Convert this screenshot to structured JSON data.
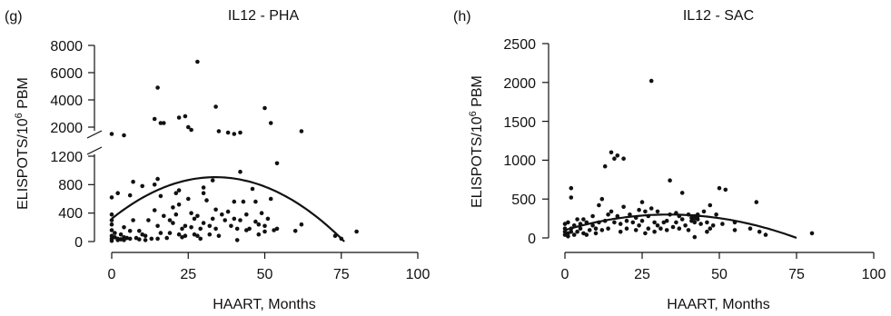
{
  "chart_data": [
    {
      "type": "scatter",
      "panel_label": "(g)",
      "title": "IL12 - PHA",
      "xlabel": "HAART, Months",
      "ylabel_main": "ELISPOTS/10",
      "ylabel_sup": "6",
      "ylabel_tail": " PBM",
      "xlim": [
        0,
        100
      ],
      "x_ticks": [
        "0",
        "25",
        "50",
        "75",
        "100"
      ],
      "y_break": true,
      "y_lower_range": [
        0,
        1200
      ],
      "y_upper_range": [
        1000,
        8000
      ],
      "y_ticks_lower": [
        "0",
        "400",
        "800",
        "1200"
      ],
      "y_ticks_upper": [
        "2000",
        "4000",
        "6000",
        "8000"
      ],
      "grid": false,
      "fit": {
        "type": "quadratic",
        "x_range": [
          0,
          76
        ],
        "points": [
          [
            0,
            320
          ],
          [
            34,
            905
          ],
          [
            76,
            0
          ]
        ]
      },
      "points": [
        [
          0,
          1500
        ],
        [
          4,
          1400
        ],
        [
          14,
          2600
        ],
        [
          15,
          4900
        ],
        [
          16,
          2300
        ],
        [
          17,
          2300
        ],
        [
          22,
          2700
        ],
        [
          24,
          2800
        ],
        [
          25,
          2000
        ],
        [
          26,
          1800
        ],
        [
          28,
          6800
        ],
        [
          34,
          3500
        ],
        [
          35,
          1700
        ],
        [
          38,
          1600
        ],
        [
          40,
          1500
        ],
        [
          42,
          1600
        ],
        [
          50,
          3400
        ],
        [
          52,
          2300
        ],
        [
          54,
          1100
        ],
        [
          62,
          1700
        ],
        [
          0,
          620
        ],
        [
          0,
          380
        ],
        [
          0,
          300
        ],
        [
          0,
          240
        ],
        [
          0,
          160
        ],
        [
          0,
          80
        ],
        [
          0,
          40
        ],
        [
          0,
          10
        ],
        [
          1,
          120
        ],
        [
          1,
          60
        ],
        [
          2,
          680
        ],
        [
          2,
          40
        ],
        [
          2,
          20
        ],
        [
          3,
          100
        ],
        [
          3,
          30
        ],
        [
          4,
          200
        ],
        [
          4,
          60
        ],
        [
          4,
          20
        ],
        [
          5,
          50
        ],
        [
          6,
          650
        ],
        [
          6,
          150
        ],
        [
          6,
          40
        ],
        [
          7,
          840
        ],
        [
          7,
          300
        ],
        [
          8,
          50
        ],
        [
          9,
          150
        ],
        [
          9,
          30
        ],
        [
          10,
          780
        ],
        [
          10,
          100
        ],
        [
          11,
          80
        ],
        [
          11,
          20
        ],
        [
          12,
          300
        ],
        [
          13,
          40
        ],
        [
          14,
          800
        ],
        [
          14,
          440
        ],
        [
          15,
          880
        ],
        [
          15,
          220
        ],
        [
          15,
          40
        ],
        [
          16,
          640
        ],
        [
          16,
          120
        ],
        [
          17,
          360
        ],
        [
          18,
          50
        ],
        [
          19,
          300
        ],
        [
          19,
          120
        ],
        [
          20,
          260
        ],
        [
          20,
          480
        ],
        [
          21,
          680
        ],
        [
          21,
          380
        ],
        [
          22,
          720
        ],
        [
          22,
          520
        ],
        [
          22,
          100
        ],
        [
          23,
          180
        ],
        [
          23,
          60
        ],
        [
          24,
          220
        ],
        [
          24,
          80
        ],
        [
          25,
          600
        ],
        [
          26,
          400
        ],
        [
          26,
          200
        ],
        [
          27,
          320
        ],
        [
          27,
          100
        ],
        [
          28,
          360
        ],
        [
          28,
          80
        ],
        [
          29,
          180
        ],
        [
          29,
          40
        ],
        [
          30,
          680
        ],
        [
          30,
          760
        ],
        [
          30,
          260
        ],
        [
          31,
          580
        ],
        [
          32,
          220
        ],
        [
          32,
          100
        ],
        [
          33,
          860
        ],
        [
          33,
          320
        ],
        [
          34,
          450
        ],
        [
          34,
          180
        ],
        [
          35,
          80
        ],
        [
          36,
          380
        ],
        [
          37,
          300
        ],
        [
          38,
          420
        ],
        [
          39,
          220
        ],
        [
          40,
          560
        ],
        [
          40,
          320
        ],
        [
          41,
          180
        ],
        [
          41,
          20
        ],
        [
          42,
          980
        ],
        [
          42,
          300
        ],
        [
          43,
          560
        ],
        [
          44,
          380
        ],
        [
          44,
          160
        ],
        [
          45,
          180
        ],
        [
          46,
          740
        ],
        [
          47,
          560
        ],
        [
          47,
          280
        ],
        [
          48,
          240
        ],
        [
          48,
          100
        ],
        [
          49,
          400
        ],
        [
          50,
          220
        ],
        [
          50,
          140
        ],
        [
          51,
          320
        ],
        [
          52,
          600
        ],
        [
          53,
          160
        ],
        [
          54,
          180
        ],
        [
          60,
          150
        ],
        [
          62,
          240
        ],
        [
          73,
          80
        ],
        [
          75,
          40
        ],
        [
          80,
          140
        ]
      ]
    },
    {
      "type": "scatter",
      "panel_label": "(h)",
      "title": "IL12 - SAC",
      "xlabel": "HAART, Months",
      "ylabel_main": "ELISPOTS/10",
      "ylabel_sup": "6",
      "ylabel_tail": " PBM",
      "xlim": [
        0,
        100
      ],
      "ylim": [
        0,
        2500
      ],
      "x_ticks": [
        "0",
        "25",
        "50",
        "75",
        "100"
      ],
      "y_ticks": [
        "0",
        "500",
        "1000",
        "1500",
        "2000",
        "2500"
      ],
      "grid": false,
      "fit": {
        "type": "quadratic",
        "x_range": [
          0,
          75
        ],
        "points": [
          [
            0,
            100
          ],
          [
            32,
            300
          ],
          [
            75,
            0
          ]
        ]
      },
      "points": [
        [
          0,
          180
        ],
        [
          0,
          120
        ],
        [
          0,
          80
        ],
        [
          0,
          40
        ],
        [
          1,
          200
        ],
        [
          1,
          60
        ],
        [
          1,
          20
        ],
        [
          2,
          640
        ],
        [
          2,
          520
        ],
        [
          2,
          120
        ],
        [
          2,
          80
        ],
        [
          3,
          160
        ],
        [
          3,
          40
        ],
        [
          4,
          240
        ],
        [
          4,
          80
        ],
        [
          5,
          180
        ],
        [
          5,
          120
        ],
        [
          6,
          240
        ],
        [
          6,
          60
        ],
        [
          7,
          200
        ],
        [
          7,
          40
        ],
        [
          8,
          100
        ],
        [
          9,
          280
        ],
        [
          9,
          160
        ],
        [
          10,
          120
        ],
        [
          10,
          60
        ],
        [
          11,
          420
        ],
        [
          11,
          200
        ],
        [
          12,
          500
        ],
        [
          12,
          100
        ],
        [
          13,
          920
        ],
        [
          13,
          220
        ],
        [
          14,
          300
        ],
        [
          14,
          120
        ],
        [
          15,
          1100
        ],
        [
          15,
          340
        ],
        [
          16,
          1020
        ],
        [
          16,
          200
        ],
        [
          17,
          1060
        ],
        [
          17,
          280
        ],
        [
          18,
          180
        ],
        [
          18,
          80
        ],
        [
          19,
          1020
        ],
        [
          19,
          400
        ],
        [
          20,
          220
        ],
        [
          20,
          120
        ],
        [
          21,
          300
        ],
        [
          22,
          200
        ],
        [
          23,
          260
        ],
        [
          23,
          100
        ],
        [
          24,
          360
        ],
        [
          24,
          160
        ],
        [
          25,
          460
        ],
        [
          25,
          220
        ],
        [
          26,
          340
        ],
        [
          26,
          60
        ],
        [
          27,
          280
        ],
        [
          27,
          120
        ],
        [
          28,
          2020
        ],
        [
          28,
          380
        ],
        [
          29,
          200
        ],
        [
          29,
          80
        ],
        [
          30,
          340
        ],
        [
          30,
          160
        ],
        [
          31,
          120
        ],
        [
          32,
          200
        ],
        [
          33,
          220
        ],
        [
          33,
          100
        ],
        [
          34,
          740
        ],
        [
          34,
          300
        ],
        [
          35,
          140
        ],
        [
          36,
          320
        ],
        [
          36,
          200
        ],
        [
          37,
          280
        ],
        [
          37,
          120
        ],
        [
          38,
          240
        ],
        [
          38,
          580
        ],
        [
          39,
          160
        ],
        [
          40,
          300
        ],
        [
          40,
          100
        ],
        [
          41,
          260
        ],
        [
          41,
          220
        ],
        [
          42,
          280
        ],
        [
          42,
          250
        ],
        [
          42,
          200
        ],
        [
          42,
          10
        ],
        [
          43,
          240
        ],
        [
          43,
          280
        ],
        [
          43,
          300
        ],
        [
          44,
          180
        ],
        [
          45,
          340
        ],
        [
          46,
          200
        ],
        [
          46,
          80
        ],
        [
          47,
          420
        ],
        [
          47,
          120
        ],
        [
          48,
          160
        ],
        [
          49,
          300
        ],
        [
          50,
          640
        ],
        [
          51,
          180
        ],
        [
          52,
          620
        ],
        [
          55,
          200
        ],
        [
          55,
          100
        ],
        [
          60,
          120
        ],
        [
          62,
          460
        ],
        [
          63,
          80
        ],
        [
          65,
          40
        ],
        [
          80,
          60
        ]
      ]
    }
  ]
}
